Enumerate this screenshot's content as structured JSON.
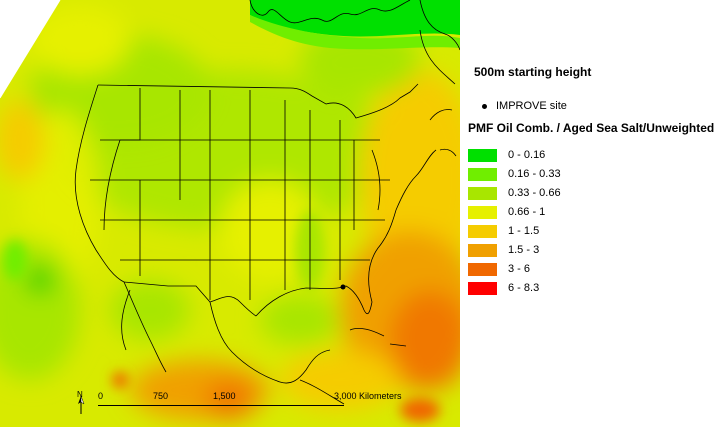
{
  "legend": {
    "title_height": "500m starting height",
    "site_label": "IMPROVE site",
    "title_pmf": "PMF Oil Comb. / Aged Sea Salt/Unweighted",
    "classes": [
      {
        "label": "0 - 0.16",
        "color": "#00e000"
      },
      {
        "label": "0.16 - 0.33",
        "color": "#70ee00"
      },
      {
        "label": "0.33 - 0.66",
        "color": "#a8e600"
      },
      {
        "label": "0.66 - 1",
        "color": "#e6f000"
      },
      {
        "label": "1 - 1.5",
        "color": "#f5cc00"
      },
      {
        "label": "1.5 - 3",
        "color": "#f0a000"
      },
      {
        "label": "3 - 6",
        "color": "#f06800"
      },
      {
        "label": "6 - 8.3",
        "color": "#ff0000"
      }
    ]
  },
  "scale": {
    "ticks": [
      "0",
      "750",
      "1,500",
      "3,000 Kilometers"
    ]
  },
  "north_label": "N",
  "colors": {
    "map_base": "#d8e800",
    "ocean_warm": "#f0b000",
    "ocean_hot": "#f07800",
    "north_green": "#00e000",
    "boundary": "#000000"
  }
}
